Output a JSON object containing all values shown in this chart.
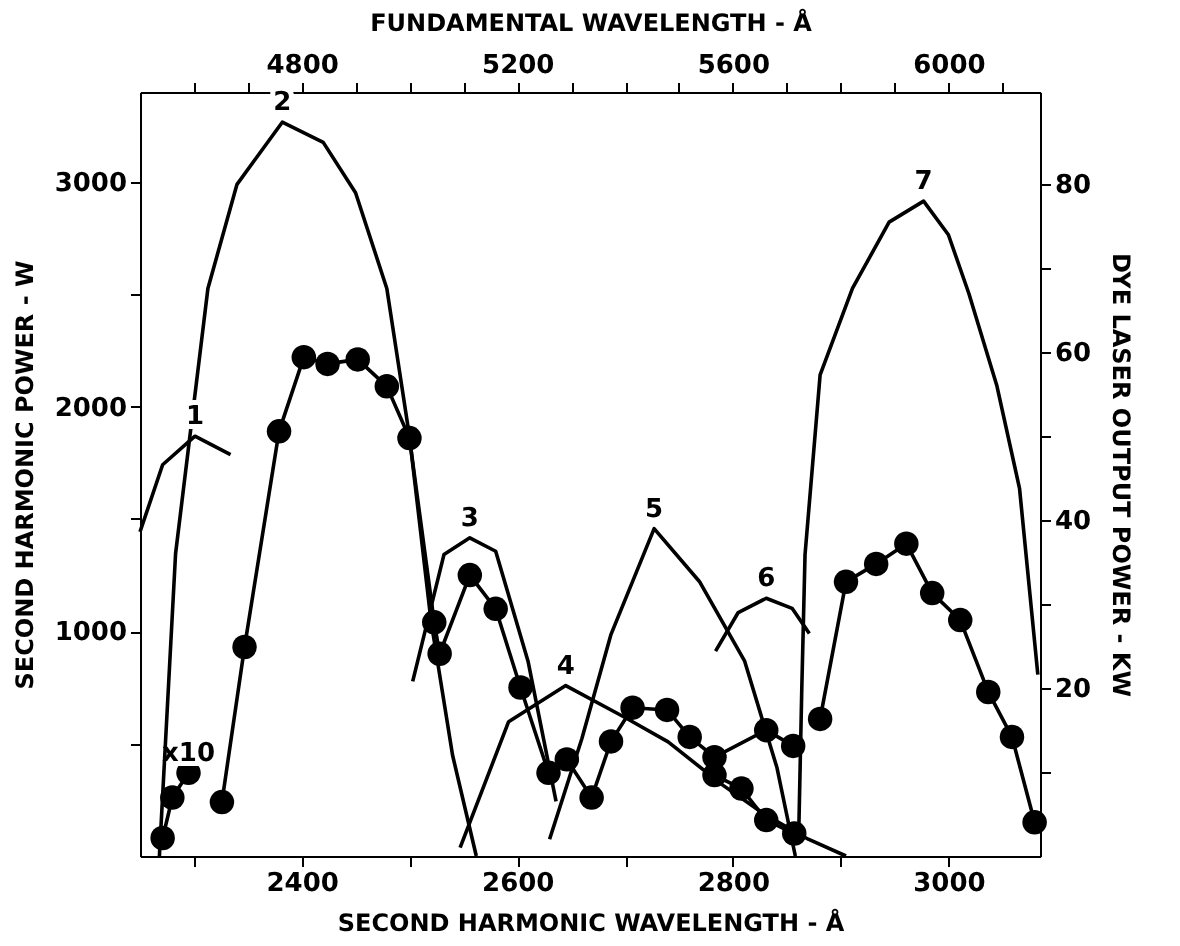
{
  "chart_data": {
    "type": "line",
    "xlabel": "SECOND HARMONIC WAVELENGTH - Å",
    "x2label": "FUNDAMENTAL WAVELENGTH - Å",
    "ylabel": "SECOND HARMONIC POWER - W",
    "y2label": "DYE LASER OUTPUT POWER - KW",
    "xlim": [
      2250,
      3085
    ],
    "xticks": [
      {
        "value": 2300,
        "label": null
      },
      2400,
      {
        "value": 2500,
        "label": null
      },
      2600,
      {
        "value": 2700,
        "label": null
      },
      2800,
      {
        "value": 2900,
        "label": null
      },
      3000
    ],
    "x2lim": [
      4500,
      6170
    ],
    "x2ticks": [
      {
        "value": 4600,
        "label": null
      },
      {
        "value": 4700,
        "label": null
      },
      4800,
      {
        "value": 4900,
        "label": null
      },
      {
        "value": 5000,
        "label": null
      },
      {
        "value": 5100,
        "label": null
      },
      5200,
      {
        "value": 5300,
        "label": null
      },
      {
        "value": 5400,
        "label": null
      },
      {
        "value": 5500,
        "label": null
      },
      5600,
      {
        "value": 5700,
        "label": null
      },
      {
        "value": 5800,
        "label": null
      },
      {
        "value": 5900,
        "label": null
      },
      6000,
      {
        "value": 6100,
        "label": null
      }
    ],
    "ylim": [
      0,
      3400
    ],
    "yticks": [
      {
        "value": 500,
        "label": null
      },
      1000,
      {
        "value": 1500,
        "label": null
      },
      2000,
      {
        "value": 2500,
        "label": null
      },
      3000
    ],
    "y2lim": [
      0,
      91
    ],
    "y2ticks": [
      {
        "value": 10,
        "label": null
      },
      20,
      {
        "value": 30,
        "label": null
      },
      40,
      {
        "value": 50,
        "label": null
      },
      60,
      {
        "value": 70,
        "label": null
      },
      80
    ],
    "grid": false,
    "line_style": "solid",
    "series": [
      {
        "name": "x10",
        "color": "#000000",
        "marker": "circle",
        "x": [
          2271,
          2280,
          2295
        ],
        "values": [
          80,
          260,
          370
        ]
      },
      {
        "color": "#000000",
        "marker": "circle",
        "x": [
          2326,
          2347,
          2379,
          2402,
          2424,
          2452,
          2479,
          2500,
          2523,
          2528,
          2556,
          2580,
          2603,
          2629,
          2646,
          2669,
          2687,
          2707,
          2739,
          2760,
          2783,
          2831,
          2856
        ],
        "values": [
          240,
          930,
          1890,
          2220,
          2190,
          2210,
          2090,
          1860,
          1040,
          900,
          1250,
          1100,
          750,
          370,
          430,
          260,
          510,
          660,
          650,
          530,
          440,
          560,
          490
        ]
      },
      {
        "color": "#000000",
        "marker": "circle",
        "x": [
          2783,
          2808,
          2831,
          2857
        ],
        "values": [
          360,
          300,
          160,
          100
        ]
      },
      {
        "color": "#000000",
        "marker": "circle",
        "x": [
          2881,
          2905,
          2933,
          2961,
          2985,
          3011,
          3037,
          3059,
          3080
        ],
        "values": [
          610,
          1220,
          1300,
          1390,
          1170,
          1050,
          730,
          530,
          150
        ]
      },
      {
        "name": "1",
        "color": "#000000",
        "marker": "none",
        "axis": "y2",
        "x": [
          2250,
          2271,
          2301,
          2334
        ],
        "values": [
          38.6,
          46.6,
          50.0,
          47.8
        ]
      },
      {
        "name": "2",
        "color": "#000000",
        "marker": "none",
        "axis": "y2",
        "x": [
          2268,
          2283,
          2313,
          2340,
          2382,
          2420,
          2450,
          2479,
          2500,
          2520,
          2540,
          2562
        ],
        "values": [
          0,
          36,
          67.6,
          80,
          87.4,
          85,
          79,
          67.6,
          50,
          28,
          12,
          0
        ]
      },
      {
        "name": "3",
        "color": "#000000",
        "marker": "none",
        "axis": "y2",
        "x": [
          2503,
          2532,
          2556,
          2580,
          2610,
          2636
        ],
        "values": [
          20.8,
          35.9,
          37.9,
          36.3,
          23.2,
          6.5
        ]
      },
      {
        "name": "4",
        "color": "#000000",
        "marker": "none",
        "axis": "y2",
        "x": [
          2547,
          2592,
          2645,
          2700,
          2740,
          2790,
          2829,
          2870,
          2905
        ],
        "values": [
          1,
          16,
          20.3,
          16.5,
          13.6,
          8.5,
          5,
          2,
          0
        ]
      },
      {
        "name": "5",
        "color": "#000000",
        "marker": "none",
        "axis": "y2",
        "x": [
          2630,
          2660,
          2687,
          2727,
          2769,
          2811,
          2841,
          2858
        ],
        "values": [
          2,
          14,
          26.4,
          39,
          32.7,
          23.2,
          10.5,
          0
        ]
      },
      {
        "name": "6",
        "color": "#000000",
        "marker": "none",
        "axis": "y2",
        "x": [
          2784,
          2805,
          2831,
          2855,
          2871
        ],
        "values": [
          24.4,
          29,
          30.7,
          29.5,
          26.5
        ]
      },
      {
        "name": "7",
        "color": "#000000",
        "marker": "none",
        "axis": "y2",
        "x": [
          2861,
          2864,
          2867,
          2881,
          2911,
          2945,
          2977,
          3000,
          3019,
          3045,
          3066,
          3083
        ],
        "values": [
          1.7,
          20,
          35.9,
          57.3,
          67.6,
          75.5,
          78,
          74,
          67,
          56,
          43.8,
          21.6
        ]
      }
    ]
  }
}
